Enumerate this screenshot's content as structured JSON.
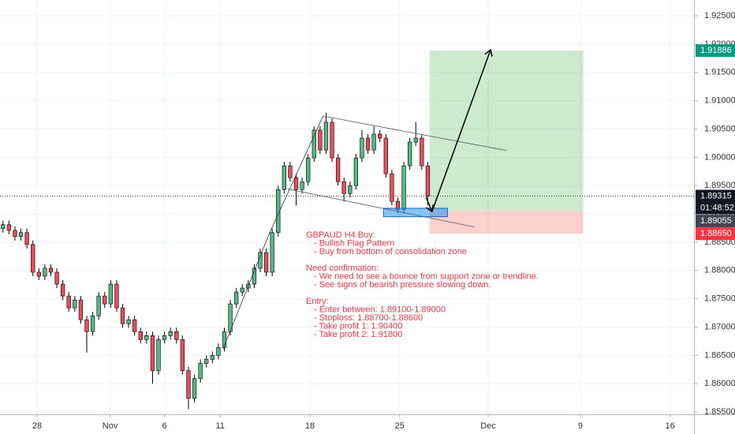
{
  "chart_data": {
    "type": "candlestick",
    "open": [
      1.8874,
      1.8881,
      1.8871,
      1.886,
      1.8867,
      1.8846,
      1.8797,
      1.879,
      1.8804,
      1.8797,
      1.8776,
      1.8755,
      1.8734,
      1.8748,
      1.8713,
      1.8692,
      1.872,
      1.8755,
      1.8741,
      1.8776,
      1.8734,
      1.8706,
      1.8713,
      1.8692,
      1.8678,
      1.8685,
      1.8623,
      1.8678,
      1.8685,
      1.8692,
      1.8678,
      1.8623,
      1.8574,
      1.8609,
      1.8636,
      1.8643,
      1.865,
      1.8664,
      1.8692,
      1.8741,
      1.8762,
      1.8769,
      1.8776,
      1.8804,
      1.8832,
      1.8797,
      1.8867,
      1.8943,
      1.8985,
      1.8964,
      1.8943,
      1.8957,
      1.8999,
      1.9048,
      1.9013,
      1.9062,
      1.8999,
      1.8957,
      1.8936,
      1.895,
      1.8999,
      1.9034,
      1.9013,
      1.9041,
      1.9034,
      1.8971,
      1.8922,
      1.8908,
      1.8985,
      1.9027,
      1.9034,
      1.8985
    ],
    "high": [
      1.8888,
      1.8888,
      1.8878,
      1.8874,
      1.8874,
      1.8853,
      1.8804,
      1.8811,
      1.8811,
      1.8804,
      1.8783,
      1.8762,
      1.8755,
      1.8755,
      1.872,
      1.8727,
      1.8762,
      1.8762,
      1.8783,
      1.8783,
      1.8741,
      1.872,
      1.872,
      1.8699,
      1.8692,
      1.8692,
      1.8685,
      1.8692,
      1.8699,
      1.8699,
      1.8685,
      1.863,
      1.8616,
      1.8643,
      1.865,
      1.8657,
      1.8671,
      1.8699,
      1.8748,
      1.8769,
      1.8776,
      1.8783,
      1.8811,
      1.8839,
      1.8839,
      1.8874,
      1.895,
      1.8992,
      1.8992,
      1.8971,
      1.8964,
      1.9006,
      1.9055,
      1.9055,
      1.9079,
      1.9069,
      1.9006,
      1.8964,
      1.8957,
      1.9006,
      1.9048,
      1.9041,
      1.9055,
      1.9048,
      1.9041,
      1.8978,
      1.8929,
      1.8992,
      1.9034,
      1.9062,
      1.9041,
      1.8992
    ],
    "low": [
      1.8867,
      1.8864,
      1.8853,
      1.8853,
      1.8839,
      1.879,
      1.8783,
      1.8783,
      1.879,
      1.8769,
      1.8748,
      1.8727,
      1.8727,
      1.8706,
      1.8655,
      1.8685,
      1.8713,
      1.8734,
      1.8734,
      1.8727,
      1.8699,
      1.8699,
      1.8685,
      1.8671,
      1.8671,
      1.86,
      1.8616,
      1.8671,
      1.8678,
      1.8671,
      1.8616,
      1.8555,
      1.8567,
      1.8602,
      1.8629,
      1.8636,
      1.8643,
      1.8657,
      1.8685,
      1.8734,
      1.8755,
      1.8762,
      1.8769,
      1.8797,
      1.879,
      1.879,
      1.886,
      1.8936,
      1.8957,
      1.8915,
      1.8936,
      1.895,
      1.8992,
      1.9006,
      1.9006,
      1.8992,
      1.895,
      1.8922,
      1.8929,
      1.8943,
      1.8992,
      1.9006,
      1.9006,
      1.9027,
      1.8964,
      1.8915,
      1.8901,
      1.8901,
      1.8978,
      1.902,
      1.8978,
      1.8915
    ],
    "close": [
      1.8881,
      1.8871,
      1.886,
      1.8867,
      1.8846,
      1.8797,
      1.879,
      1.8804,
      1.8797,
      1.8776,
      1.8755,
      1.8734,
      1.8748,
      1.8713,
      1.8692,
      1.872,
      1.8755,
      1.8741,
      1.8776,
      1.8734,
      1.8706,
      1.8713,
      1.8692,
      1.8678,
      1.8685,
      1.8623,
      1.8678,
      1.8685,
      1.8692,
      1.8678,
      1.8623,
      1.8574,
      1.8609,
      1.8636,
      1.8643,
      1.865,
      1.8664,
      1.8692,
      1.8741,
      1.8762,
      1.8769,
      1.8776,
      1.8804,
      1.8832,
      1.8797,
      1.8867,
      1.8943,
      1.8985,
      1.8964,
      1.8943,
      1.8957,
      1.8999,
      1.9048,
      1.9013,
      1.9062,
      1.8999,
      1.8957,
      1.8936,
      1.895,
      1.8999,
      1.9034,
      1.9013,
      1.9041,
      1.9034,
      1.8971,
      1.8922,
      1.8908,
      1.8985,
      1.9027,
      1.9034,
      1.8985,
      1.8932
    ],
    "up_color": "#53b987",
    "down_color": "#eb4d5c",
    "xlim": [
      -0.5,
      115.5
    ],
    "xticks": [
      {
        "value": 5.7,
        "label": "28"
      },
      {
        "value": 17.9,
        "label": "Nov"
      },
      {
        "value": 27.0,
        "label": "6"
      },
      {
        "value": 36.3,
        "label": "11"
      },
      {
        "value": 51.3,
        "label": "18"
      },
      {
        "value": 66.3,
        "label": "25"
      },
      {
        "value": 81.1,
        "label": "Dec"
      },
      {
        "value": 96.5,
        "label": "9"
      },
      {
        "value": 111.5,
        "label": "16"
      }
    ],
    "ylim": [
      1.8546,
      1.9278
    ],
    "yticks": [
      {
        "value": 1.855,
        "label": "1.85500"
      },
      {
        "value": 1.86,
        "label": "1.86000"
      },
      {
        "value": 1.865,
        "label": "1.86500"
      },
      {
        "value": 1.87,
        "label": "1.87000"
      },
      {
        "value": 1.875,
        "label": "1.87500"
      },
      {
        "value": 1.88,
        "label": "1.88000"
      },
      {
        "value": 1.885,
        "label": "1.88500"
      },
      {
        "value": 1.89,
        "label": "1.89000"
      },
      {
        "value": 1.895,
        "label": "1.89500"
      },
      {
        "value": 1.9,
        "label": "1.90000"
      },
      {
        "value": 1.905,
        "label": "1.90500"
      },
      {
        "value": 1.91,
        "label": "1.91000"
      },
      {
        "value": 1.915,
        "label": "1.91500"
      },
      {
        "value": 1.92,
        "label": "1.92000"
      },
      {
        "value": 1.925,
        "label": "1.92500"
      }
    ],
    "grid": true,
    "last_price": 1.89315,
    "countdown": "01:48:52",
    "position": {
      "x": [
        71.3,
        97.0
      ],
      "entry": 1.89055,
      "target": 1.91886,
      "stop": {
        "value": 1.8865,
        "label": "1.88650"
      }
    },
    "support_zone": {
      "x": [
        63.6,
        74.3
      ],
      "y": [
        1.891,
        1.8895
      ]
    },
    "flag_upper": {
      "x": [
        53.5,
        84.2
      ],
      "y": [
        1.9073,
        1.9012
      ]
    },
    "flag_lower": {
      "x": [
        47.6,
        78.8
      ],
      "y": [
        1.8944,
        1.8877
      ]
    },
    "pole": {
      "x": [
        36.8,
        44.5,
        53.5
      ],
      "y": [
        1.8662,
        1.8865,
        1.9073
      ]
    },
    "arrow_down": {
      "x": [
        70.7,
        71.7
      ],
      "y": [
        1.893,
        1.8904
      ]
    },
    "arrow_up": {
      "x": [
        71.7,
        81.5
      ],
      "y": [
        1.8904,
        1.919
      ]
    },
    "annotation": [
      {
        "heading": "GBPAUD H4 Buy:",
        "items": [
          "- Bullish Flag Pattern",
          "- Buy from bottom of consolidation zone"
        ]
      },
      {
        "heading": "Need confirmation:",
        "items": [
          "- We need to see a bounce from support zone or trendline.",
          "- See signs of bearish pressure slowing down."
        ]
      },
      {
        "heading": "Entry:",
        "items": [
          "- Enter between: 1.89100-1.89000",
          "- Stoploss: 1.88700-1.88600",
          "- Take profit 1: 1.90400",
          "- Take profit 2: 1.91800"
        ]
      }
    ]
  }
}
